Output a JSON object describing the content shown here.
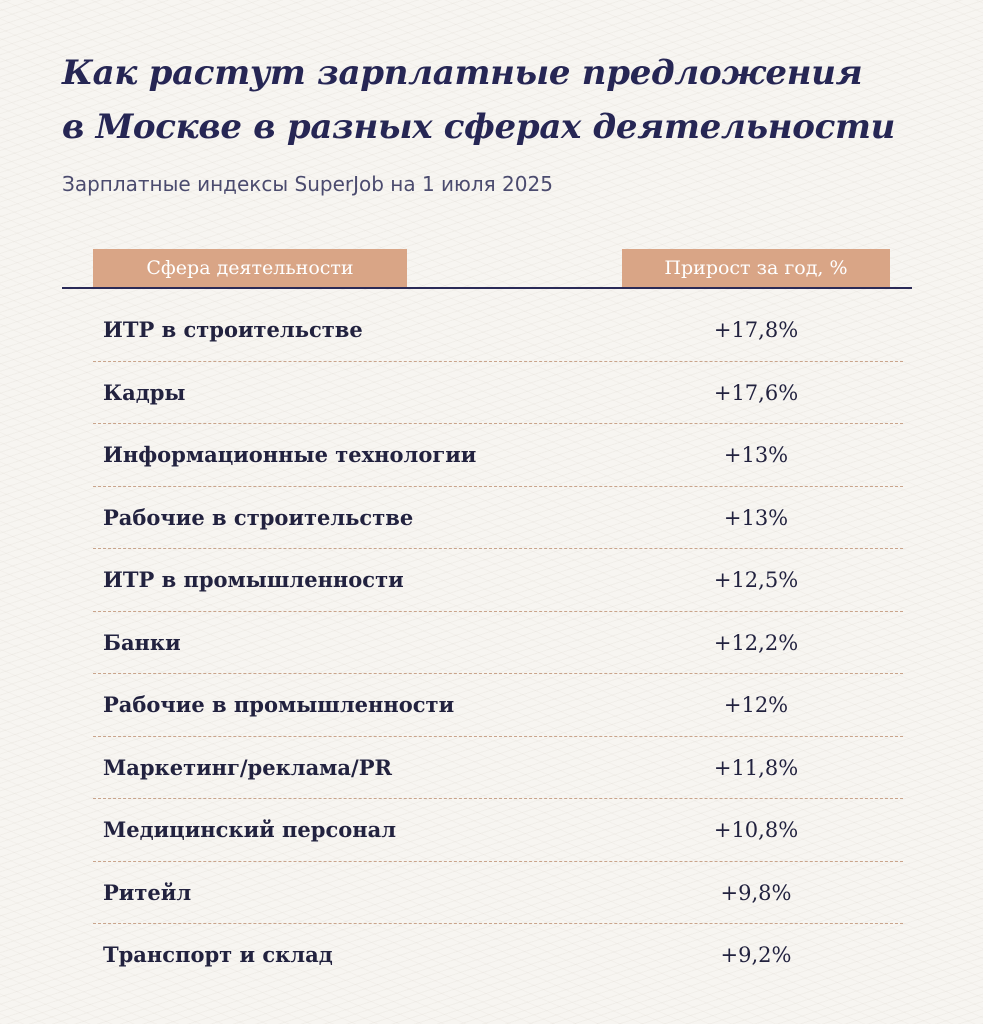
{
  "title_lines": [
    "Как растут зарплатные предложения",
    "в Москве в разных сферах деятельности"
  ],
  "subtitle": "Зарплатные индексы SuperJob на 1 июля 2025",
  "columns": {
    "category": "Сфера деятельности",
    "value": "Прирост за год, %"
  },
  "rows": [
    {
      "category": "ИТР в строительстве",
      "value": "+17,8%"
    },
    {
      "category": "Кадры",
      "value": "+17,6%"
    },
    {
      "category": "Информационные технологии",
      "value": "+13%"
    },
    {
      "category": "Рабочие в строительстве",
      "value": "+13%"
    },
    {
      "category": "ИТР в промышленности",
      "value": "+12,5%"
    },
    {
      "category": "Банки",
      "value": "+12,2%"
    },
    {
      "category": "Рабочие в промышленности",
      "value": "+12%"
    },
    {
      "category": "Маркетинг/реклама/PR",
      "value": "+11,8%"
    },
    {
      "category": "Медицинский персонал",
      "value": "+10,8%"
    },
    {
      "category": "Ритейл",
      "value": "+9,8%"
    },
    {
      "category": "Транспорт и склад",
      "value": "+9,2%"
    }
  ],
  "colors": {
    "title": "#262654",
    "header_fill": "#d9a586",
    "header_text": "#ffffff",
    "rule": "#2a2a57",
    "row_divider": "#c9a48b",
    "background": "#f7f5f1"
  },
  "chart_data": {
    "type": "table",
    "title": "Как растут зарплатные предложения в Москве в разных сферах деятельности",
    "subtitle": "Зарплатные индексы SuperJob на 1 июля 2025",
    "columns": [
      "Сфера деятельности",
      "Прирост за год, %"
    ],
    "categories": [
      "ИТР в строительстве",
      "Кадры",
      "Информационные технологии",
      "Рабочие в строительстве",
      "ИТР в промышленности",
      "Банки",
      "Рабочие в промышленности",
      "Маркетинг/реклама/PR",
      "Медицинский персонал",
      "Ритейл",
      "Транспорт и склад"
    ],
    "values": [
      17.8,
      17.6,
      13,
      13,
      12.5,
      12.2,
      12,
      11.8,
      10.8,
      9.8,
      9.2
    ]
  }
}
